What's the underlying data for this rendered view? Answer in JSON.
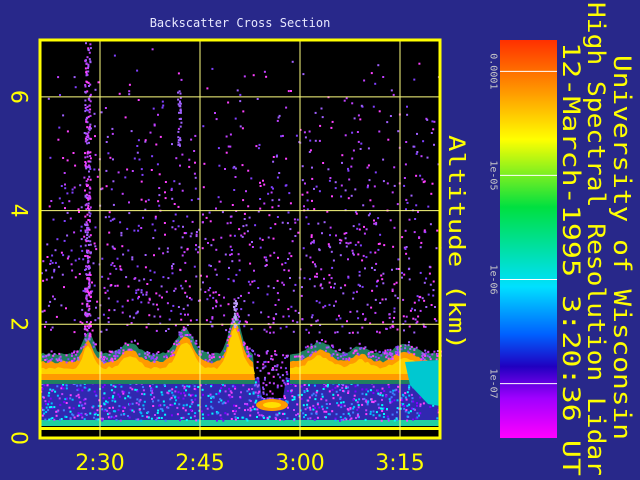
{
  "chart_data": {
    "type": "heatmap",
    "title": "Backscatter Cross Section",
    "y_label": "Altitude (km)",
    "xlim": [
      141,
      201
    ],
    "xticks": [
      {
        "value": 150,
        "label": "2:30"
      },
      {
        "value": 165,
        "label": "2:45"
      },
      {
        "value": 180,
        "label": "3:00"
      },
      {
        "value": 195,
        "label": "3:15"
      }
    ],
    "ylim": [
      0,
      7
    ],
    "yticks": [
      0,
      2,
      4,
      6
    ],
    "grid": true,
    "grid_color": "#ffff80",
    "frame_color": "#ffff00",
    "colorbar": {
      "log": true,
      "lim": [
        3e-08,
        0.0002
      ],
      "ticks": [
        0.0001,
        {
          "value": 1e-05,
          "label": "1e-05"
        },
        {
          "value": 1e-06,
          "label": "1e-06"
        },
        {
          "value": 1e-07,
          "label": "1e-07"
        }
      ]
    }
  },
  "header": {
    "lines": [
      "University of Wisconsin",
      "High Spectral Resolution Lidar",
      "12-March-1995   3:20:36 UT"
    ]
  }
}
